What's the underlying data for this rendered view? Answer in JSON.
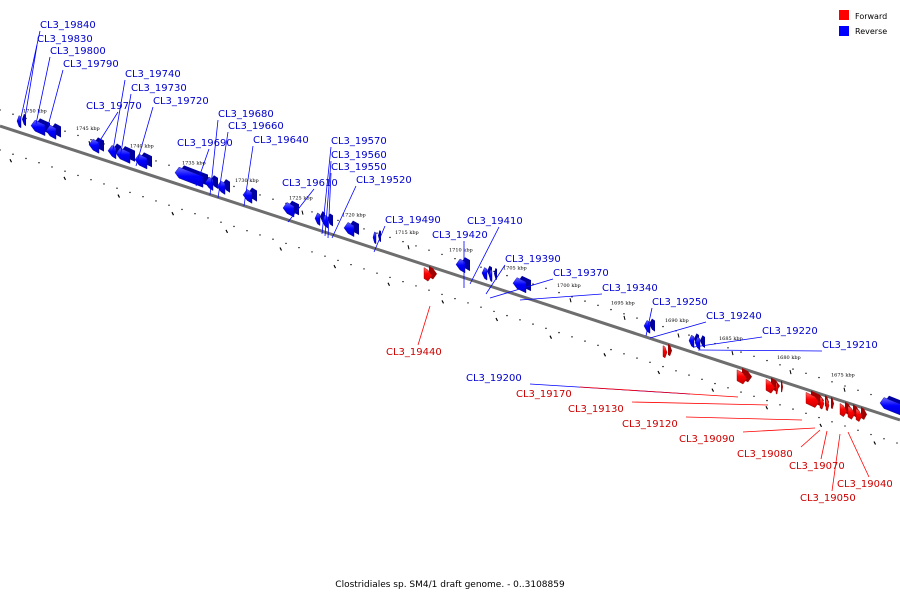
{
  "caption": "Clostridiales sp. SM4/1 draft genome. - 0..3108859",
  "legend": [
    {
      "label": "Forward",
      "color": "#ff0000"
    },
    {
      "label": "Reverse",
      "color": "#0000ff"
    }
  ],
  "ruler_ticks": [
    "1750 kbp",
    "1745 kbp",
    "1740 kbp",
    "1735 kbp",
    "1730 kbp",
    "1725 kbp",
    "1720 kbp",
    "1715 kbp",
    "1710 kbp",
    "1705 kbp",
    "1700 kbp",
    "1695 kbp",
    "1690 kbp",
    "1685 kbp",
    "1680 kbp",
    "1675 kbp"
  ],
  "genes": [
    {
      "label": "CL3_19840",
      "strand": "reverse"
    },
    {
      "label": "CL3_19830",
      "strand": "reverse"
    },
    {
      "label": "CL3_19800",
      "strand": "reverse"
    },
    {
      "label": "CL3_19790",
      "strand": "reverse"
    },
    {
      "label": "CL3_19770",
      "strand": "reverse"
    },
    {
      "label": "CL3_19740",
      "strand": "reverse"
    },
    {
      "label": "CL3_19730",
      "strand": "reverse"
    },
    {
      "label": "CL3_19720",
      "strand": "reverse"
    },
    {
      "label": "CL3_19690",
      "strand": "reverse"
    },
    {
      "label": "CL3_19680",
      "strand": "reverse"
    },
    {
      "label": "CL3_19660",
      "strand": "reverse"
    },
    {
      "label": "CL3_19640",
      "strand": "reverse"
    },
    {
      "label": "CL3_19610",
      "strand": "reverse"
    },
    {
      "label": "CL3_19570",
      "strand": "reverse"
    },
    {
      "label": "CL3_19560",
      "strand": "reverse"
    },
    {
      "label": "CL3_19550",
      "strand": "reverse"
    },
    {
      "label": "CL3_19520",
      "strand": "reverse"
    },
    {
      "label": "CL3_19490",
      "strand": "reverse"
    },
    {
      "label": "CL3_19440",
      "strand": "forward"
    },
    {
      "label": "CL3_19420",
      "strand": "reverse"
    },
    {
      "label": "CL3_19410",
      "strand": "reverse"
    },
    {
      "label": "CL3_19390",
      "strand": "reverse"
    },
    {
      "label": "CL3_19370",
      "strand": "reverse"
    },
    {
      "label": "CL3_19340",
      "strand": "reverse"
    },
    {
      "label": "CL3_19250",
      "strand": "reverse"
    },
    {
      "label": "CL3_19240",
      "strand": "reverse"
    },
    {
      "label": "CL3_19220",
      "strand": "reverse"
    },
    {
      "label": "CL3_19210",
      "strand": "reverse"
    },
    {
      "label": "CL3_19200",
      "strand": "reverse"
    },
    {
      "label": "CL3_19170",
      "strand": "forward"
    },
    {
      "label": "CL3_19130",
      "strand": "forward"
    },
    {
      "label": "CL3_19120",
      "strand": "forward"
    },
    {
      "label": "CL3_19090",
      "strand": "forward"
    },
    {
      "label": "CL3_19080",
      "strand": "forward"
    },
    {
      "label": "CL3_19070",
      "strand": "forward"
    },
    {
      "label": "CL3_19040",
      "strand": "forward"
    },
    {
      "label": "CL3_19050",
      "strand": "forward"
    }
  ]
}
